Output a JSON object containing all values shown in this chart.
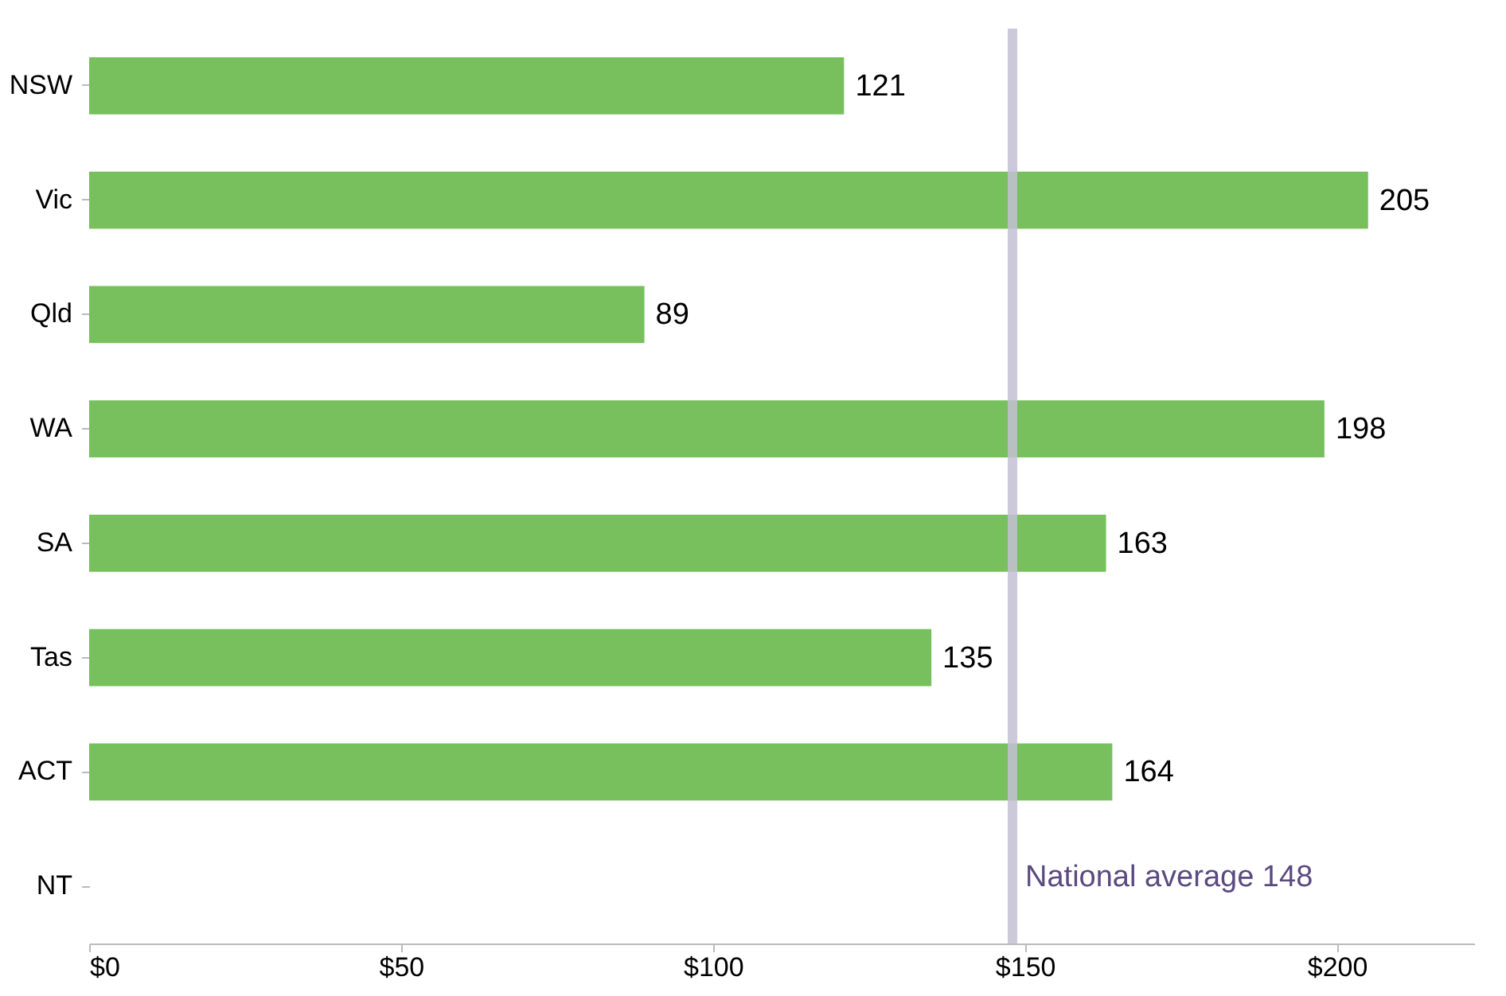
{
  "chart_data": {
    "type": "bar",
    "orientation": "horizontal",
    "categories": [
      "NSW",
      "Vic",
      "Qld",
      "WA",
      "SA",
      "Tas",
      "ACT",
      "NT"
    ],
    "values": [
      121,
      205,
      89,
      198,
      163,
      135,
      164,
      null
    ],
    "color": "#77c05d",
    "data_labels": true,
    "grid": false,
    "xlim": [
      0,
      222
    ],
    "xticks": [
      {
        "value": 0,
        "label": "$0"
      },
      {
        "value": 50,
        "label": "$50"
      },
      {
        "value": 100,
        "label": "$100"
      },
      {
        "value": 150,
        "label": "$150"
      },
      {
        "value": 200,
        "label": "$200"
      }
    ],
    "ref_lines": [
      {
        "axis": "x",
        "value": 148,
        "label": "National average 148",
        "color": "#c3bfd3"
      }
    ]
  }
}
